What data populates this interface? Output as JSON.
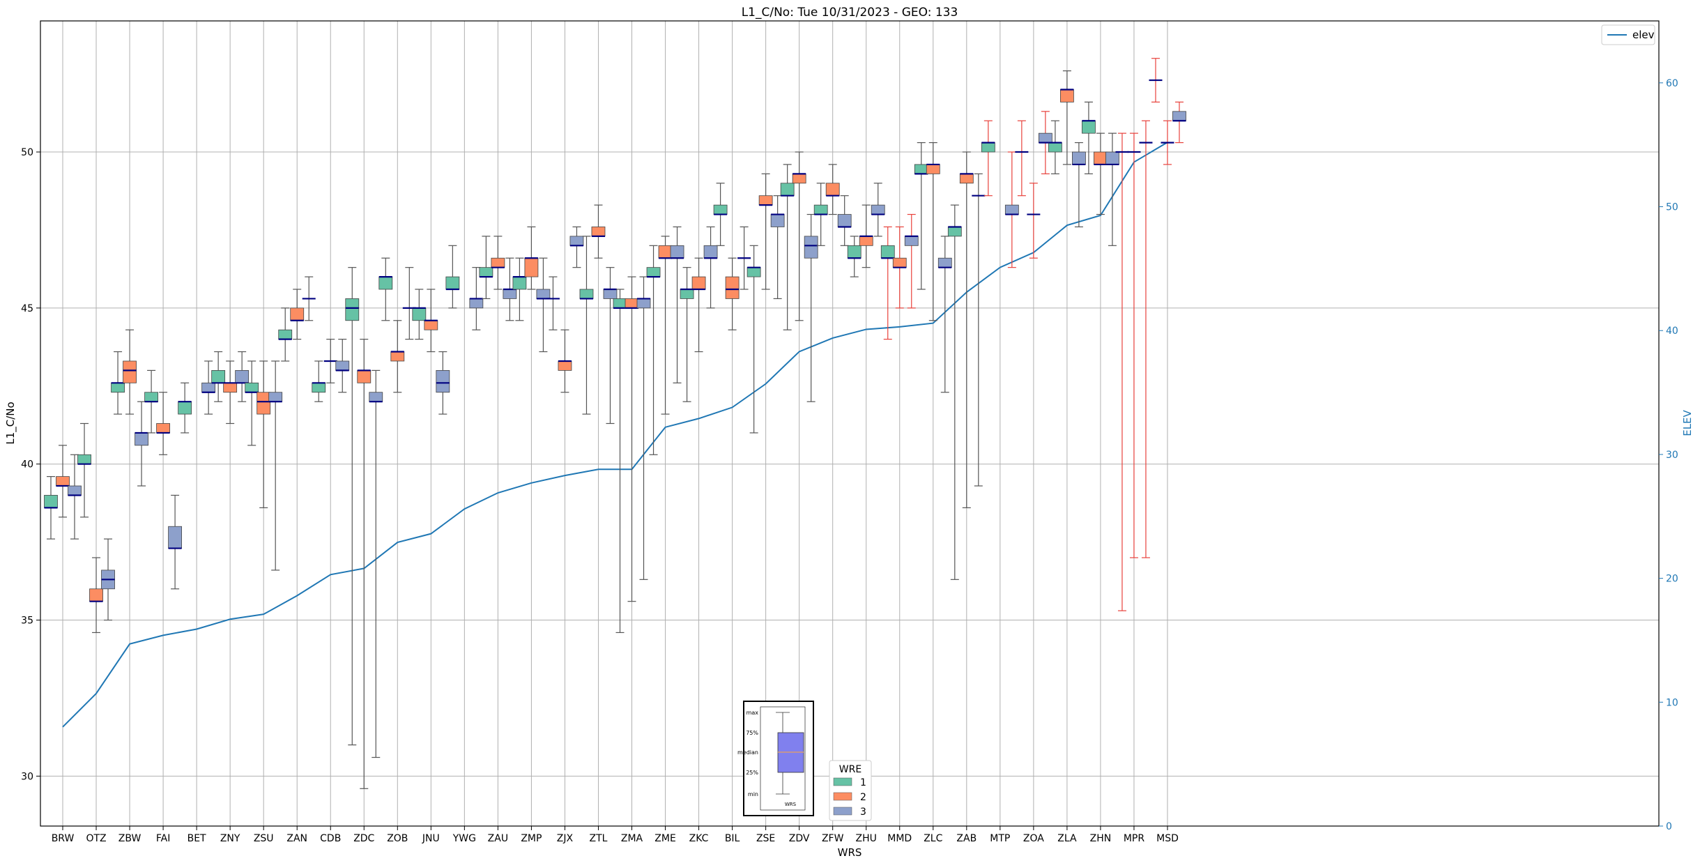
{
  "chart_data": {
    "type": "box",
    "title": "L1_C/No: Tue 10/31/2023 - GEO: 133",
    "xlabel": "WRS",
    "ylabel": "L1_C/No",
    "y2label": "ELEV",
    "ylim": [
      28.4,
      54.2
    ],
    "y2lim": [
      0,
      65
    ],
    "yticks": [
      "30",
      "35",
      "40",
      "45",
      "50"
    ],
    "y2ticks": [
      "0",
      "10",
      "20",
      "30",
      "40",
      "50",
      "60"
    ],
    "grid": true,
    "categories": [
      "BRW",
      "OTZ",
      "ZBW",
      "FAI",
      "BET",
      "ZNY",
      "ZSU",
      "ZAN",
      "CDB",
      "ZDC",
      "ZOB",
      "JNU",
      "YWG",
      "ZAU",
      "ZMP",
      "ZJX",
      "ZTL",
      "ZMA",
      "ZME",
      "ZKC",
      "BIL",
      "ZSE",
      "ZDV",
      "ZFW",
      "ZHU",
      "MMD",
      "ZLC",
      "ZAB",
      "MTP",
      "ZOA",
      "ZLA",
      "ZHN",
      "MPR",
      "MSD"
    ],
    "wre_colors": {
      "1": "#66c2a5",
      "2": "#fc8d62",
      "3": "#8da0cb"
    },
    "legend_wre": {
      "title": "WRE",
      "items": [
        "1",
        "2",
        "3"
      ]
    },
    "legend_line": {
      "label": "elev"
    },
    "key": {
      "labels": [
        "max",
        "75%",
        "median",
        "25%",
        "min"
      ],
      "xlabel": "WRS"
    },
    "elevation": [
      8,
      10.7,
      14.7,
      15.4,
      15.9,
      16.7,
      17.1,
      18.6,
      20.3,
      20.8,
      22.9,
      23.6,
      25.6,
      26.9,
      27.7,
      28.3,
      28.8,
      28.8,
      32.2,
      32.9,
      33.8,
      35.7,
      38.3,
      39.4,
      40.1,
      40.3,
      40.6,
      43.1,
      45.1,
      46.3,
      48.5,
      49.3,
      53.6,
      55.2
    ],
    "boxes": [
      {
        "cat": "BRW",
        "wre": 1,
        "min": 37.6,
        "q1": 38.6,
        "median": 38.6,
        "q3": 39.0,
        "max": 39.6
      },
      {
        "cat": "BRW",
        "wre": 2,
        "min": 38.3,
        "q1": 39.3,
        "median": 39.3,
        "q3": 39.6,
        "max": 40.6
      },
      {
        "cat": "BRW",
        "wre": 3,
        "min": 37.6,
        "q1": 39.0,
        "median": 39.0,
        "q3": 39.3,
        "max": 40.3
      },
      {
        "cat": "OTZ",
        "wre": 1,
        "min": 38.3,
        "q1": 40.0,
        "median": 40.0,
        "q3": 40.3,
        "max": 41.3
      },
      {
        "cat": "OTZ",
        "wre": 2,
        "min": 34.6,
        "q1": 35.6,
        "median": 35.6,
        "q3": 36.0,
        "max": 37.0
      },
      {
        "cat": "OTZ",
        "wre": 3,
        "min": 35.0,
        "q1": 36.0,
        "median": 36.3,
        "q3": 36.6,
        "max": 37.6
      },
      {
        "cat": "ZBW",
        "wre": 1,
        "min": 41.6,
        "q1": 42.3,
        "median": 42.6,
        "q3": 42.6,
        "max": 43.6
      },
      {
        "cat": "ZBW",
        "wre": 2,
        "min": 41.6,
        "q1": 42.6,
        "median": 43.0,
        "q3": 43.3,
        "max": 44.3
      },
      {
        "cat": "ZBW",
        "wre": 3,
        "min": 39.3,
        "q1": 40.6,
        "median": 41.0,
        "q3": 41.0,
        "max": 42.0
      },
      {
        "cat": "FAI",
        "wre": 1,
        "min": 41.0,
        "q1": 42.0,
        "median": 42.0,
        "q3": 42.3,
        "max": 43.0
      },
      {
        "cat": "FAI",
        "wre": 2,
        "min": 40.3,
        "q1": 41.0,
        "median": 41.0,
        "q3": 41.3,
        "max": 42.3
      },
      {
        "cat": "FAI",
        "wre": 3,
        "min": 36.0,
        "q1": 37.3,
        "median": 37.3,
        "q3": 38.0,
        "max": 39.0
      },
      {
        "cat": "BET",
        "wre": 1,
        "min": 41.0,
        "q1": 41.6,
        "median": 42.0,
        "q3": 42.0,
        "max": 42.6
      },
      {
        "cat": "BET",
        "wre": 3,
        "min": 41.6,
        "q1": 42.3,
        "median": 42.3,
        "q3": 42.6,
        "max": 43.3
      },
      {
        "cat": "ZNY",
        "wre": 1,
        "min": 42.0,
        "q1": 42.6,
        "median": 42.6,
        "q3": 43.0,
        "max": 43.6
      },
      {
        "cat": "ZNY",
        "wre": 2,
        "min": 41.3,
        "q1": 42.3,
        "median": 42.6,
        "q3": 42.6,
        "max": 43.3
      },
      {
        "cat": "ZNY",
        "wre": 3,
        "min": 42.0,
        "q1": 42.6,
        "median": 42.6,
        "q3": 43.0,
        "max": 43.6
      },
      {
        "cat": "ZSU",
        "wre": 1,
        "min": 40.6,
        "q1": 42.3,
        "median": 42.3,
        "q3": 42.6,
        "max": 43.3
      },
      {
        "cat": "ZSU",
        "wre": 2,
        "min": 38.6,
        "q1": 41.6,
        "median": 42.0,
        "q3": 42.3,
        "max": 43.3
      },
      {
        "cat": "ZSU",
        "wre": 3,
        "min": 36.6,
        "q1": 42.0,
        "median": 42.0,
        "q3": 42.3,
        "max": 43.3
      },
      {
        "cat": "ZAN",
        "wre": 1,
        "min": 43.3,
        "q1": 44.0,
        "median": 44.0,
        "q3": 44.3,
        "max": 45.0
      },
      {
        "cat": "ZAN",
        "wre": 2,
        "min": 44.0,
        "q1": 44.6,
        "median": 44.6,
        "q3": 45.0,
        "max": 45.6
      },
      {
        "cat": "ZAN",
        "wre": 3,
        "min": 44.6,
        "q1": 45.3,
        "median": 45.3,
        "q3": 45.3,
        "max": 46.0
      },
      {
        "cat": "CDB",
        "wre": 1,
        "min": 42.0,
        "q1": 42.3,
        "median": 42.6,
        "q3": 42.6,
        "max": 43.3
      },
      {
        "cat": "CDB",
        "wre": 2,
        "min": 42.6,
        "q1": 43.3,
        "median": 43.3,
        "q3": 43.3,
        "max": 44.0
      },
      {
        "cat": "CDB",
        "wre": 3,
        "min": 42.3,
        "q1": 43.0,
        "median": 43.0,
        "q3": 43.3,
        "max": 44.0
      },
      {
        "cat": "ZDC",
        "wre": 1,
        "min": 31.0,
        "q1": 44.6,
        "median": 45.0,
        "q3": 45.3,
        "max": 46.3
      },
      {
        "cat": "ZDC",
        "wre": 2,
        "min": 29.6,
        "q1": 42.6,
        "median": 43.0,
        "q3": 43.0,
        "max": 44.0
      },
      {
        "cat": "ZDC",
        "wre": 3,
        "min": 30.6,
        "q1": 42.0,
        "median": 42.0,
        "q3": 42.3,
        "max": 43.0
      },
      {
        "cat": "ZOB",
        "wre": 1,
        "min": 44.6,
        "q1": 45.6,
        "median": 46.0,
        "q3": 46.0,
        "max": 46.6
      },
      {
        "cat": "ZOB",
        "wre": 2,
        "min": 42.3,
        "q1": 43.3,
        "median": 43.6,
        "q3": 43.6,
        "max": 44.6
      },
      {
        "cat": "ZOB",
        "wre": 3,
        "min": 44.0,
        "q1": 45.0,
        "median": 45.0,
        "q3": 45.0,
        "max": 46.3
      },
      {
        "cat": "JNU",
        "wre": 1,
        "min": 44.0,
        "q1": 44.6,
        "median": 45.0,
        "q3": 45.0,
        "max": 45.6
      },
      {
        "cat": "JNU",
        "wre": 2,
        "min": 43.6,
        "q1": 44.3,
        "median": 44.6,
        "q3": 44.6,
        "max": 45.6
      },
      {
        "cat": "JNU",
        "wre": 3,
        "min": 41.6,
        "q1": 42.3,
        "median": 42.6,
        "q3": 43.0,
        "max": 43.6
      },
      {
        "cat": "YWG",
        "wre": 1,
        "min": 45.0,
        "q1": 45.6,
        "median": 45.6,
        "q3": 46.0,
        "max": 47.0
      },
      {
        "cat": "YWG",
        "wre": 3,
        "min": 44.3,
        "q1": 45.0,
        "median": 45.3,
        "q3": 45.3,
        "max": 46.3
      },
      {
        "cat": "ZAU",
        "wre": 1,
        "min": 45.3,
        "q1": 46.0,
        "median": 46.0,
        "q3": 46.3,
        "max": 47.3
      },
      {
        "cat": "ZAU",
        "wre": 2,
        "min": 45.6,
        "q1": 46.3,
        "median": 46.3,
        "q3": 46.6,
        "max": 47.3
      },
      {
        "cat": "ZAU",
        "wre": 3,
        "min": 44.6,
        "q1": 45.3,
        "median": 45.6,
        "q3": 45.6,
        "max": 46.6
      },
      {
        "cat": "ZMP",
        "wre": 1,
        "min": 44.6,
        "q1": 45.6,
        "median": 46.0,
        "q3": 46.0,
        "max": 46.6
      },
      {
        "cat": "ZMP",
        "wre": 2,
        "min": 45.6,
        "q1": 46.0,
        "median": 46.6,
        "q3": 46.6,
        "max": 47.6
      },
      {
        "cat": "ZMP",
        "wre": 3,
        "min": 43.6,
        "q1": 45.3,
        "median": 45.3,
        "q3": 45.6,
        "max": 46.6
      },
      {
        "cat": "ZJX",
        "wre": 1,
        "min": 44.3,
        "q1": 45.3,
        "median": 45.3,
        "q3": 45.3,
        "max": 46.0
      },
      {
        "cat": "ZJX",
        "wre": 2,
        "min": 42.3,
        "q1": 43.0,
        "median": 43.3,
        "q3": 43.3,
        "max": 44.3
      },
      {
        "cat": "ZJX",
        "wre": 3,
        "min": 46.3,
        "q1": 47.0,
        "median": 47.0,
        "q3": 47.3,
        "max": 47.6
      },
      {
        "cat": "ZTL",
        "wre": 1,
        "min": 41.6,
        "q1": 45.3,
        "median": 45.3,
        "q3": 45.6,
        "max": 47.3
      },
      {
        "cat": "ZTL",
        "wre": 2,
        "min": 46.6,
        "q1": 47.3,
        "median": 47.3,
        "q3": 47.6,
        "max": 48.3
      },
      {
        "cat": "ZTL",
        "wre": 3,
        "min": 41.3,
        "q1": 45.3,
        "median": 45.6,
        "q3": 45.6,
        "max": 46.3
      },
      {
        "cat": "ZMA",
        "wre": 1,
        "min": 34.6,
        "q1": 45.0,
        "median": 45.0,
        "q3": 45.3,
        "max": 45.6
      },
      {
        "cat": "ZMA",
        "wre": 2,
        "min": 35.6,
        "q1": 45.0,
        "median": 45.0,
        "q3": 45.3,
        "max": 46.0
      },
      {
        "cat": "ZMA",
        "wre": 3,
        "min": 36.3,
        "q1": 45.0,
        "median": 45.3,
        "q3": 45.3,
        "max": 46.0
      },
      {
        "cat": "ZME",
        "wre": 1,
        "min": 40.3,
        "q1": 46.0,
        "median": 46.0,
        "q3": 46.3,
        "max": 47.0
      },
      {
        "cat": "ZME",
        "wre": 2,
        "min": 41.6,
        "q1": 46.6,
        "median": 46.6,
        "q3": 47.0,
        "max": 47.3
      },
      {
        "cat": "ZME",
        "wre": 3,
        "min": 42.6,
        "q1": 46.6,
        "median": 46.6,
        "q3": 47.0,
        "max": 47.6
      },
      {
        "cat": "ZKC",
        "wre": 1,
        "min": 42.0,
        "q1": 45.3,
        "median": 45.6,
        "q3": 45.6,
        "max": 46.3
      },
      {
        "cat": "ZKC",
        "wre": 2,
        "min": 43.6,
        "q1": 45.6,
        "median": 45.6,
        "q3": 46.0,
        "max": 46.6
      },
      {
        "cat": "ZKC",
        "wre": 3,
        "min": 45.0,
        "q1": 46.6,
        "median": 46.6,
        "q3": 47.0,
        "max": 47.6
      },
      {
        "cat": "BIL",
        "wre": 1,
        "min": 47.0,
        "q1": 48.0,
        "median": 48.0,
        "q3": 48.3,
        "max": 49.0
      },
      {
        "cat": "BIL",
        "wre": 2,
        "min": 44.3,
        "q1": 45.3,
        "median": 45.6,
        "q3": 46.0,
        "max": 46.6
      },
      {
        "cat": "BIL",
        "wre": 3,
        "min": 45.6,
        "q1": 46.6,
        "median": 46.6,
        "q3": 46.6,
        "max": 47.6
      },
      {
        "cat": "ZSE",
        "wre": 1,
        "min": 41.0,
        "q1": 46.0,
        "median": 46.3,
        "q3": 46.3,
        "max": 47.0
      },
      {
        "cat": "ZSE",
        "wre": 2,
        "min": 45.6,
        "q1": 48.3,
        "median": 48.3,
        "q3": 48.6,
        "max": 49.3
      },
      {
        "cat": "ZSE",
        "wre": 3,
        "min": 45.3,
        "q1": 47.6,
        "median": 48.0,
        "q3": 48.0,
        "max": 48.6
      },
      {
        "cat": "ZDV",
        "wre": 1,
        "min": 44.3,
        "q1": 48.6,
        "median": 48.6,
        "q3": 49.0,
        "max": 49.6
      },
      {
        "cat": "ZDV",
        "wre": 2,
        "min": 44.6,
        "q1": 49.0,
        "median": 49.3,
        "q3": 49.3,
        "max": 50.0
      },
      {
        "cat": "ZDV",
        "wre": 3,
        "min": 42.0,
        "q1": 46.6,
        "median": 47.0,
        "q3": 47.3,
        "max": 48.0
      },
      {
        "cat": "ZFW",
        "wre": 1,
        "min": 47.0,
        "q1": 48.0,
        "median": 48.0,
        "q3": 48.3,
        "max": 49.0
      },
      {
        "cat": "ZFW",
        "wre": 2,
        "min": 48.0,
        "q1": 48.6,
        "median": 48.6,
        "q3": 49.0,
        "max": 49.6
      },
      {
        "cat": "ZFW",
        "wre": 3,
        "min": 47.0,
        "q1": 47.6,
        "median": 47.6,
        "q3": 48.0,
        "max": 48.6
      },
      {
        "cat": "ZHU",
        "wre": 1,
        "min": 46.0,
        "q1": 46.6,
        "median": 46.6,
        "q3": 47.0,
        "max": 47.3
      },
      {
        "cat": "ZHU",
        "wre": 2,
        "min": 46.3,
        "q1": 47.0,
        "median": 47.3,
        "q3": 47.3,
        "max": 48.3
      },
      {
        "cat": "ZHU",
        "wre": 3,
        "min": 47.3,
        "q1": 48.0,
        "median": 48.0,
        "q3": 48.3,
        "max": 49.0
      },
      {
        "cat": "MMD",
        "wre": 1,
        "min": 44.0,
        "q1": 46.6,
        "median": 46.6,
        "q3": 47.0,
        "max": 47.6
      },
      {
        "cat": "MMD",
        "wre": 2,
        "min": 45.0,
        "q1": 46.3,
        "median": 46.3,
        "q3": 46.6,
        "max": 47.6
      },
      {
        "cat": "MMD",
        "wre": 3,
        "min": 45.0,
        "q1": 47.0,
        "median": 47.3,
        "q3": 47.3,
        "max": 48.0
      },
      {
        "cat": "ZLC",
        "wre": 1,
        "min": 45.6,
        "q1": 49.3,
        "median": 49.3,
        "q3": 49.6,
        "max": 50.3
      },
      {
        "cat": "ZLC",
        "wre": 2,
        "min": 44.6,
        "q1": 49.3,
        "median": 49.6,
        "q3": 49.6,
        "max": 50.3
      },
      {
        "cat": "ZLC",
        "wre": 3,
        "min": 42.3,
        "q1": 46.3,
        "median": 46.3,
        "q3": 46.6,
        "max": 47.3
      },
      {
        "cat": "ZAB",
        "wre": 1,
        "min": 36.3,
        "q1": 47.3,
        "median": 47.6,
        "q3": 47.6,
        "max": 48.3
      },
      {
        "cat": "ZAB",
        "wre": 2,
        "min": 38.6,
        "q1": 49.0,
        "median": 49.3,
        "q3": 49.3,
        "max": 50.0
      },
      {
        "cat": "ZAB",
        "wre": 3,
        "min": 39.3,
        "q1": 48.6,
        "median": 48.6,
        "q3": 48.6,
        "max": 49.3
      },
      {
        "cat": "MTP",
        "wre": 1,
        "min": 48.6,
        "q1": 50.0,
        "median": 50.3,
        "q3": 50.3,
        "max": 51.0
      },
      {
        "cat": "MTP",
        "wre": 3,
        "min": 46.3,
        "q1": 48.0,
        "median": 48.0,
        "q3": 48.3,
        "max": 50.0
      },
      {
        "cat": "ZOA",
        "wre": 1,
        "min": 48.6,
        "q1": 50.0,
        "median": 50.0,
        "q3": 50.0,
        "max": 51.0
      },
      {
        "cat": "ZOA",
        "wre": 2,
        "min": 46.6,
        "q1": 48.0,
        "median": 48.0,
        "q3": 48.0,
        "max": 49.0
      },
      {
        "cat": "ZOA",
        "wre": 3,
        "min": 49.3,
        "q1": 50.3,
        "median": 50.3,
        "q3": 50.6,
        "max": 51.3
      },
      {
        "cat": "ZLA",
        "wre": 1,
        "min": 49.3,
        "q1": 50.0,
        "median": 50.3,
        "q3": 50.3,
        "max": 51.0
      },
      {
        "cat": "ZLA",
        "wre": 2,
        "min": 49.6,
        "q1": 51.6,
        "median": 52.0,
        "q3": 52.0,
        "max": 52.6
      },
      {
        "cat": "ZLA",
        "wre": 3,
        "min": 47.6,
        "q1": 49.6,
        "median": 49.6,
        "q3": 50.0,
        "max": 50.3
      },
      {
        "cat": "ZHN",
        "wre": 1,
        "min": 49.3,
        "q1": 50.6,
        "median": 51.0,
        "q3": 51.0,
        "max": 51.6
      },
      {
        "cat": "ZHN",
        "wre": 2,
        "min": 48.0,
        "q1": 49.6,
        "median": 49.6,
        "q3": 50.0,
        "max": 50.6
      },
      {
        "cat": "ZHN",
        "wre": 3,
        "min": 47.0,
        "q1": 49.6,
        "median": 49.6,
        "q3": 50.0,
        "max": 50.6
      },
      {
        "cat": "MPR",
        "wre": 1,
        "min": 35.3,
        "q1": 50.0,
        "median": 50.0,
        "q3": 50.0,
        "max": 50.6
      },
      {
        "cat": "MPR",
        "wre": 2,
        "min": 37.0,
        "q1": 50.0,
        "median": 50.0,
        "q3": 50.0,
        "max": 50.6
      },
      {
        "cat": "MPR",
        "wre": 3,
        "min": 37.0,
        "q1": 50.3,
        "median": 50.3,
        "q3": 50.3,
        "max": 51.0
      },
      {
        "cat": "MSD",
        "wre": 1,
        "min": 51.6,
        "q1": 52.3,
        "median": 52.3,
        "q3": 52.3,
        "max": 53.0
      },
      {
        "cat": "MSD",
        "wre": 2,
        "min": 49.6,
        "q1": 50.3,
        "median": 50.3,
        "q3": 50.3,
        "max": 51.0
      },
      {
        "cat": "MSD",
        "wre": 3,
        "min": 50.3,
        "q1": 51.0,
        "median": 51.0,
        "q3": 51.3,
        "max": 51.6
      }
    ]
  }
}
